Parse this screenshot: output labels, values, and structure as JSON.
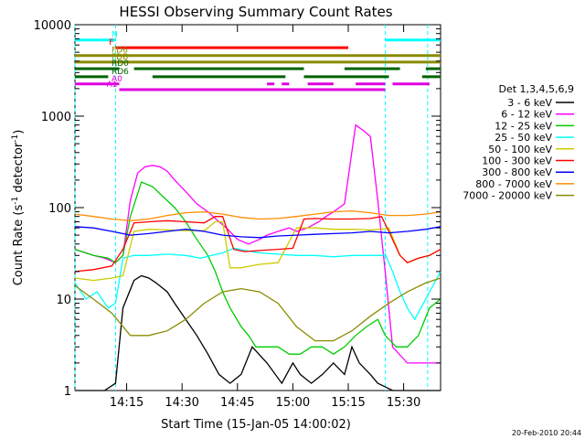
{
  "chart_data": {
    "type": "line",
    "title": "HESSI Observing Summary Count Rates",
    "xlabel": "Start Time (15-Jan-05 14:00:02)",
    "ylabel": "Count Rate (s⁻¹ detector⁻¹)",
    "ylabel_base": "Count Rate (s",
    "ylabel_mid": " detector",
    "ylabel_end": ")",
    "ylabel_exp": "-1",
    "y_scale": "log",
    "ylim": [
      1,
      10000
    ],
    "xlim_minutes": [
      0,
      99
    ],
    "x_ticks": [
      {
        "minute": 14,
        "label": "14:15"
      },
      {
        "minute": 29,
        "label": "14:30"
      },
      {
        "minute": 44,
        "label": "14:45"
      },
      {
        "minute": 59,
        "label": "15:00"
      },
      {
        "minute": 74,
        "label": "15:15"
      },
      {
        "minute": 89,
        "label": "15:30"
      }
    ],
    "y_ticks": [
      {
        "value": 1,
        "label": "1"
      },
      {
        "value": 10,
        "label": "10"
      },
      {
        "value": 100,
        "label": "100"
      },
      {
        "value": 1000,
        "label": "1000"
      },
      {
        "value": 10000,
        "label": "10000"
      }
    ],
    "legend_title": "Det 1,3,4,5,6,9",
    "legend_position": "right",
    "timestamp": "20-Feb-2010 20:44",
    "night_intervals_minutes": [
      [
        0,
        11
      ],
      [
        84,
        95.5
      ]
    ],
    "flag_bars": [
      {
        "label": "N",
        "color": "#00ffff",
        "segments": [
          [
            0,
            11
          ],
          [
            84,
            99
          ]
        ],
        "level": 6800
      },
      {
        "label": "F",
        "color": "#ff0000",
        "segments": [
          [
            11,
            74
          ]
        ],
        "level": 5600
      },
      {
        "label": "FD6",
        "color": "#8b8b00",
        "segments": [
          [
            0,
            99
          ]
        ],
        "level": 4600
      },
      {
        "label": "FDB",
        "color": "#8b8b00",
        "segments": [
          [
            0,
            99
          ]
        ],
        "level": 3900
      },
      {
        "label": "RD0",
        "color": "#006400",
        "segments": [
          [
            0,
            12
          ],
          [
            16,
            62
          ],
          [
            73,
            88
          ],
          [
            95,
            99
          ]
        ],
        "level": 3300
      },
      {
        "label": "RD6",
        "color": "#006400",
        "segments": [
          [
            0,
            9
          ],
          [
            21,
            57
          ],
          [
            62,
            85
          ],
          [
            94,
            99
          ]
        ],
        "level": 2700
      },
      {
        "label": "A0",
        "color": "#e000e0",
        "segments": [
          [
            0,
            12
          ],
          [
            52,
            54
          ],
          [
            56,
            58
          ],
          [
            63,
            70
          ],
          [
            76,
            84
          ],
          [
            86,
            96
          ]
        ],
        "level": 2250
      },
      {
        "label": "A1",
        "color": "#e000e0",
        "segments": [
          [
            12,
            84
          ]
        ],
        "level": 1950
      }
    ],
    "series": [
      {
        "name": "3 - 6 keV",
        "color": "#000000",
        "x": [
          0,
          8,
          11,
          13,
          16,
          18,
          20,
          22,
          25,
          27,
          30,
          33,
          36,
          39,
          42,
          45,
          48,
          52,
          56,
          59,
          61,
          64,
          67,
          70,
          73,
          75,
          77,
          80,
          82,
          84,
          86,
          90,
          94,
          99
        ],
        "y": [
          1,
          1,
          1.2,
          8,
          16,
          18,
          17,
          15,
          12,
          9,
          6,
          4,
          2.5,
          1.5,
          1.2,
          1.5,
          3,
          2,
          1.2,
          2,
          1.5,
          1.2,
          1.5,
          2,
          1.5,
          3,
          2,
          1.5,
          1.2,
          1.1,
          1,
          1,
          1,
          1
        ]
      },
      {
        "name": "6 - 12 keV",
        "color": "#ff00ff",
        "x": [
          0,
          5,
          8,
          11,
          13,
          15,
          17,
          19,
          21,
          23,
          25,
          27,
          30,
          33,
          36,
          39,
          41,
          44,
          47,
          50,
          52,
          55,
          58,
          60,
          63,
          66,
          68,
          70,
          73,
          76,
          78,
          80,
          82,
          84,
          86,
          90,
          95,
          99
        ],
        "y": [
          35,
          30,
          28,
          25,
          30,
          120,
          240,
          280,
          290,
          280,
          250,
          200,
          150,
          110,
          90,
          70,
          60,
          45,
          40,
          45,
          50,
          55,
          60,
          55,
          60,
          70,
          80,
          90,
          110,
          800,
          700,
          600,
          120,
          20,
          3,
          2,
          2,
          2
        ]
      },
      {
        "name": "12 - 25 keV",
        "color": "#00cc00",
        "x": [
          0,
          5,
          9,
          11,
          13,
          15,
          18,
          21,
          24,
          27,
          30,
          33,
          36,
          38,
          40,
          42,
          45,
          47,
          49,
          52,
          55,
          58,
          61,
          64,
          67,
          70,
          73,
          76,
          79,
          82,
          84,
          87,
          90,
          93,
          96,
          99
        ],
        "y": [
          35,
          30,
          28,
          25,
          30,
          80,
          190,
          170,
          130,
          100,
          70,
          45,
          30,
          20,
          12,
          8,
          5,
          4,
          3,
          3,
          3,
          2.5,
          2.5,
          3,
          3,
          2.5,
          3,
          4,
          5,
          6,
          4,
          3,
          3,
          4,
          8,
          10
        ]
      },
      {
        "name": "25 - 50 keV",
        "color": "#00ffff",
        "x": [
          0,
          3,
          6,
          9,
          11,
          13,
          16,
          20,
          25,
          30,
          34,
          37,
          40,
          43,
          46,
          50,
          55,
          60,
          65,
          70,
          75,
          80,
          83,
          84,
          86,
          88,
          90,
          92,
          95,
          99
        ],
        "y": [
          15,
          10,
          12,
          8,
          9,
          28,
          30,
          30,
          31,
          30,
          28,
          30,
          32,
          36,
          34,
          32,
          31,
          30,
          30,
          29,
          30,
          30,
          30,
          31,
          20,
          12,
          8,
          6,
          10,
          20
        ]
      },
      {
        "name": "50 - 100 keV",
        "color": "#cccc00",
        "x": [
          0,
          5,
          10,
          13,
          16,
          20,
          25,
          30,
          35,
          38,
          40,
          42,
          45,
          50,
          55,
          60,
          65,
          70,
          75,
          80,
          83,
          85,
          88,
          90,
          93,
          96,
          99
        ],
        "y": [
          17,
          16,
          17,
          18,
          55,
          58,
          57,
          56,
          56,
          70,
          70,
          22,
          22,
          24,
          25,
          60,
          60,
          58,
          58,
          57,
          58,
          60,
          30,
          25,
          28,
          30,
          35
        ]
      },
      {
        "name": "100 - 300 keV",
        "color": "#ff0000",
        "x": [
          0,
          5,
          10,
          13,
          16,
          20,
          25,
          30,
          35,
          38,
          40,
          43,
          46,
          50,
          55,
          59,
          62,
          65,
          70,
          75,
          80,
          83,
          85,
          88,
          90,
          93,
          96,
          99
        ],
        "y": [
          20,
          21,
          23,
          35,
          68,
          70,
          72,
          70,
          68,
          80,
          80,
          35,
          33,
          34,
          35,
          36,
          75,
          76,
          75,
          75,
          76,
          80,
          55,
          30,
          25,
          28,
          30,
          35
        ]
      },
      {
        "name": "300 - 800 keV",
        "color": "#0000ff",
        "x": [
          0,
          5,
          10,
          15,
          20,
          25,
          30,
          35,
          40,
          45,
          50,
          55,
          60,
          65,
          70,
          75,
          80,
          85,
          90,
          95,
          99
        ],
        "y": [
          62,
          60,
          55,
          50,
          52,
          55,
          58,
          55,
          50,
          48,
          47,
          49,
          50,
          51,
          52,
          53,
          55,
          53,
          55,
          58,
          62
        ]
      },
      {
        "name": "800 - 7000 keV",
        "color": "#ff8c00",
        "x": [
          0,
          5,
          10,
          15,
          20,
          25,
          30,
          35,
          40,
          45,
          50,
          55,
          60,
          65,
          70,
          75,
          80,
          85,
          90,
          95,
          99
        ],
        "y": [
          85,
          80,
          75,
          72,
          75,
          82,
          88,
          90,
          85,
          78,
          75,
          76,
          80,
          85,
          90,
          92,
          88,
          82,
          82,
          85,
          90
        ]
      },
      {
        "name": "7000 - 20000 keV",
        "color": "#8b8b00",
        "x": [
          0,
          5,
          10,
          15,
          20,
          25,
          30,
          35,
          40,
          45,
          50,
          55,
          60,
          65,
          70,
          75,
          80,
          85,
          90,
          95,
          99
        ],
        "y": [
          14,
          10,
          7,
          4,
          4,
          4.5,
          6,
          9,
          12,
          13,
          12,
          9,
          5,
          3.5,
          3.5,
          4.5,
          6.5,
          9,
          12,
          15,
          17
        ]
      }
    ]
  }
}
